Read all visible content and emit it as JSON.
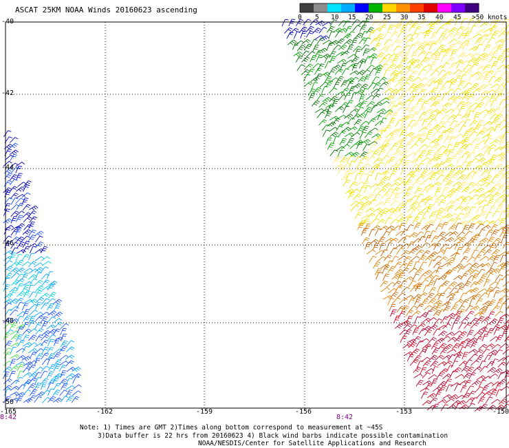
{
  "title": "ASCAT 25KM NOAA Winds 20160623 ascending",
  "colorbar": {
    "ticks": [
      "0",
      "5",
      "10",
      "15",
      "20",
      "25",
      "30",
      "35",
      "40",
      "45",
      ">50 knots"
    ],
    "colors": [
      "#404040",
      "#8c8c8c",
      "#00e5ff",
      "#00aaff",
      "#0000ff",
      "#00b400",
      "#ffd700",
      "#ff9000",
      "#ff4000",
      "#e00000",
      "#ff00ff",
      "#8000ff",
      "#400080"
    ]
  },
  "axes": {
    "lat_labels": [
      "-40",
      "-42",
      "-44",
      "-46",
      "-48",
      "-50"
    ],
    "lon_labels": [
      "-165",
      "-162",
      "-159",
      "-156",
      "-153",
      "-150"
    ]
  },
  "pass_times": [
    "8:42",
    "8:42"
  ],
  "notes": [
    "Note: 1) Times are GMT 2)Times along bottom correspond to measurement at ~45S",
    "3)Data buffer is 22 hrs from 20160623 4) Black wind barbs indicate possible contamination",
    "NOAA/NESDIS/Center for Satellite Applications and Research"
  ],
  "wind_colors": {
    "dark_blue": "#0000c0",
    "blue": "#1a4fff",
    "light_blue": "#00a8ff",
    "cyan": "#00d0e0",
    "green": "#00a000",
    "dark_green": "#007000",
    "light_green": "#40e040",
    "yellow": "#f0e000",
    "light_yellow": "#ffe860",
    "orange": "#e08000",
    "dark_orange": "#c06000",
    "red": "#d00020",
    "crimson": "#b00030"
  }
}
